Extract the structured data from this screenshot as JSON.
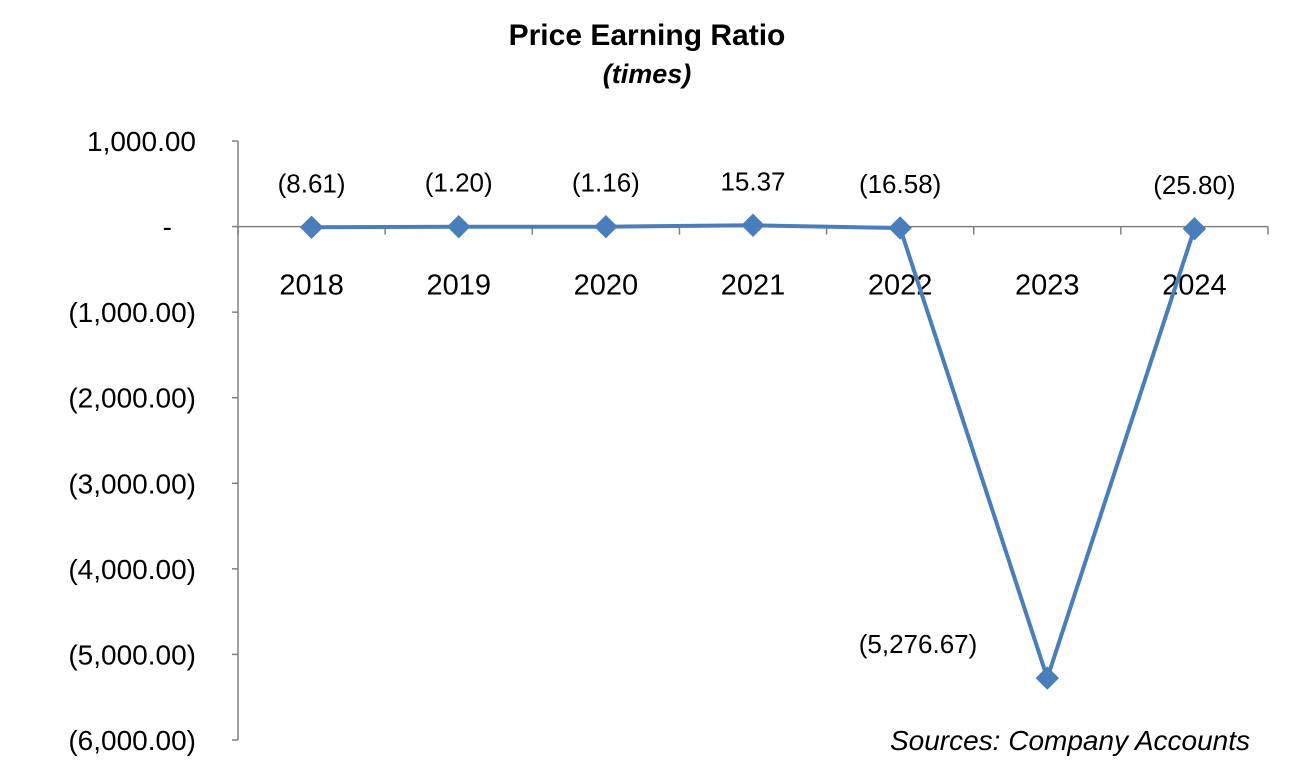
{
  "chart_data": {
    "type": "line",
    "title": "Price Earning Ratio",
    "subtitle": "(times)",
    "source": "Sources: Company Accounts",
    "categories": [
      "2018",
      "2019",
      "2020",
      "2021",
      "2022",
      "2023",
      "2024"
    ],
    "series": [
      {
        "values": [
          -8.61,
          -1.2,
          -1.16,
          15.37,
          -16.58,
          -5276.67,
          -25.8
        ],
        "data_labels": [
          "(8.61)",
          "(1.20)",
          "(1.16)",
          "15.37",
          "(16.58)",
          "(5,276.67)",
          "(25.80)"
        ]
      }
    ],
    "y_ticks": [
      {
        "value": 1000,
        "label": "1,000.00"
      },
      {
        "value": 0,
        "label": "-"
      },
      {
        "value": -1000,
        "label": "(1,000.00)"
      },
      {
        "value": -2000,
        "label": "(2,000.00)"
      },
      {
        "value": -3000,
        "label": "(3,000.00)"
      },
      {
        "value": -4000,
        "label": "(4,000.00)"
      },
      {
        "value": -5000,
        "label": "(5,000.00)"
      },
      {
        "value": -6000,
        "label": "(6,000.00)"
      }
    ],
    "ylim": [
      -6000,
      1000
    ],
    "grid": false,
    "legend": "none",
    "line_color": "#4a7ebb",
    "marker": "diamond"
  }
}
